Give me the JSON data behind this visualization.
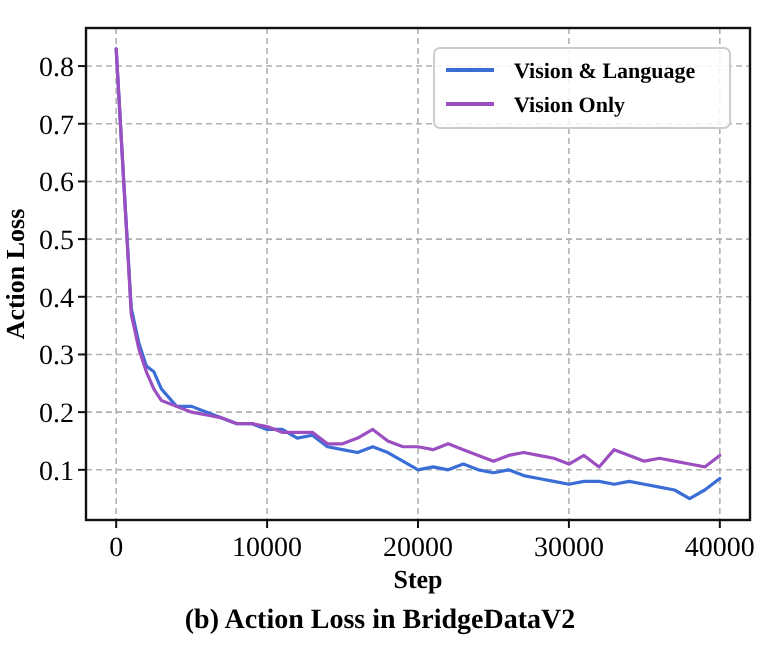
{
  "chart_data": {
    "type": "line",
    "title": "(b) Action Loss in BridgeDataV2",
    "xlabel": "Step",
    "ylabel": "Action Loss",
    "x": [
      0,
      500,
      1000,
      1500,
      2000,
      2500,
      3000,
      4000,
      5000,
      6000,
      7000,
      8000,
      9000,
      10000,
      11000,
      12000,
      13000,
      14000,
      15000,
      16000,
      17000,
      18000,
      19000,
      20000,
      21000,
      22000,
      23000,
      24000,
      25000,
      26000,
      27000,
      28000,
      29000,
      30000,
      31000,
      32000,
      33000,
      34000,
      35000,
      36000,
      37000,
      38000,
      39000,
      40000
    ],
    "series": [
      {
        "name": "Vision & Language",
        "color": "#3a6ed6",
        "values": [
          0.83,
          0.6,
          0.38,
          0.32,
          0.28,
          0.27,
          0.24,
          0.21,
          0.21,
          0.2,
          0.19,
          0.18,
          0.18,
          0.17,
          0.17,
          0.155,
          0.16,
          0.14,
          0.135,
          0.13,
          0.14,
          0.13,
          0.115,
          0.1,
          0.105,
          0.1,
          0.11,
          0.1,
          0.095,
          0.1,
          0.09,
          0.085,
          0.08,
          0.075,
          0.08,
          0.08,
          0.075,
          0.08,
          0.075,
          0.07,
          0.065,
          0.05,
          0.065,
          0.085
        ]
      },
      {
        "name": "Vision Only",
        "color": "#9b4fc0",
        "values": [
          0.83,
          0.6,
          0.37,
          0.31,
          0.27,
          0.24,
          0.22,
          0.21,
          0.2,
          0.195,
          0.19,
          0.18,
          0.18,
          0.175,
          0.165,
          0.165,
          0.165,
          0.145,
          0.145,
          0.155,
          0.17,
          0.15,
          0.14,
          0.14,
          0.135,
          0.145,
          0.135,
          0.125,
          0.115,
          0.125,
          0.13,
          0.125,
          0.12,
          0.11,
          0.125,
          0.105,
          0.135,
          0.125,
          0.115,
          0.12,
          0.115,
          0.11,
          0.105,
          0.125
        ]
      }
    ],
    "xlim": [
      -2000,
      42000
    ],
    "xticks": [
      0,
      10000,
      20000,
      30000,
      40000
    ],
    "ylim": [
      0.013,
      0.866
    ],
    "yticks": [
      0.1,
      0.2,
      0.3,
      0.4,
      0.5,
      0.6,
      0.7,
      0.8
    ],
    "grid": true,
    "legend": "top right",
    "line_style": "solid"
  }
}
